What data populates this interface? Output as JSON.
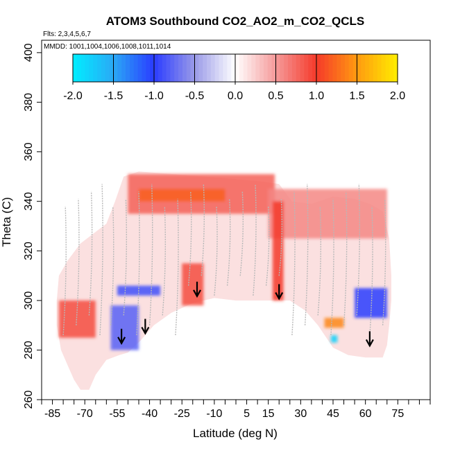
{
  "chart_data": {
    "type": "heatmap",
    "title": "ATOM3 Southbound CO2_AO2_m_CO2_QCLS",
    "flights_note": "Flts: 2,3,4,5,6,7",
    "dates_note": "MMDD: 1001,1004,1006,1008,1011,1014",
    "xlabel": "Latitude (deg N)",
    "ylabel": "Theta (C)",
    "xlim": [
      -90,
      90
    ],
    "ylim": [
      260,
      405
    ],
    "x_tick_labels": [
      "-85",
      "-70",
      "-55",
      "-40",
      "-25",
      "-10",
      "5",
      "15",
      "30",
      "45",
      "60",
      "75"
    ],
    "x_tick_values": [
      -85,
      -70,
      -55,
      -40,
      -25,
      -10,
      5,
      15,
      30,
      45,
      60,
      75
    ],
    "y_tick_labels": [
      "260",
      "280",
      "300",
      "320",
      "340",
      "360",
      "380",
      "400"
    ],
    "y_tick_values": [
      260,
      280,
      300,
      320,
      340,
      360,
      380,
      400
    ],
    "colorbar": {
      "min": -2.0,
      "max": 2.0,
      "tick_labels": [
        "-2.0",
        "-1.5",
        "-1.0",
        "-0.5",
        "0.0",
        "0.5",
        "1.0",
        "1.5",
        "2.0"
      ],
      "tick_values": [
        -2.0,
        -1.5,
        -1.0,
        -0.5,
        0.0,
        0.5,
        1.0,
        1.5,
        2.0
      ],
      "colors": [
        "#00eeff",
        "#2aa8f5",
        "#2a3cff",
        "#9a9ae8",
        "#ffffff",
        "#f59a9a",
        "#f53a2a",
        "#ff9a10",
        "#ffee00"
      ]
    },
    "regions": [
      {
        "name": "upper-red-band",
        "lat": [
          -50,
          18
        ],
        "theta": [
          335,
          351
        ],
        "value": 0.8
      },
      {
        "name": "strong-red-streak",
        "lat": [
          -45,
          -5
        ],
        "theta": [
          340,
          345
        ],
        "value": 1.2
      },
      {
        "name": "ne-red-region",
        "lat": [
          15,
          70
        ],
        "theta": [
          325,
          345
        ],
        "value": 0.6
      },
      {
        "name": "south-red-patch",
        "lat": [
          -82,
          -65
        ],
        "theta": [
          285,
          300
        ],
        "value": 0.9
      },
      {
        "name": "mid-red-column",
        "lat": [
          -25,
          -15
        ],
        "theta": [
          298,
          315
        ],
        "value": 0.9
      },
      {
        "name": "tropical-red-column",
        "lat": [
          17,
          22
        ],
        "theta": [
          300,
          340
        ],
        "value": 1.0
      },
      {
        "name": "south-blue-patch",
        "lat": [
          -58,
          -45
        ],
        "theta": [
          280,
          298
        ],
        "value": -0.8
      },
      {
        "name": "mid-blue-streak",
        "lat": [
          -55,
          -35
        ],
        "theta": [
          302,
          306
        ],
        "value": -0.9
      },
      {
        "name": "ne-blue-patch",
        "lat": [
          55,
          70
        ],
        "theta": [
          293,
          305
        ],
        "value": -1.0
      },
      {
        "name": "orange-hotspot",
        "lat": [
          41,
          50
        ],
        "theta": [
          289,
          293
        ],
        "value": 1.4
      },
      {
        "name": "cyan-spot",
        "lat": [
          44,
          47
        ],
        "theta": [
          283,
          286
        ],
        "value": -1.8
      }
    ],
    "markers": [
      {
        "type": "down-arrow",
        "lat": -53,
        "theta": 283
      },
      {
        "type": "down-arrow",
        "lat": -42,
        "theta": 287
      },
      {
        "type": "down-arrow",
        "lat": -18,
        "theta": 302
      },
      {
        "type": "down-arrow",
        "lat": 20,
        "theta": 301
      },
      {
        "type": "down-arrow",
        "lat": 62,
        "theta": 282
      }
    ]
  }
}
